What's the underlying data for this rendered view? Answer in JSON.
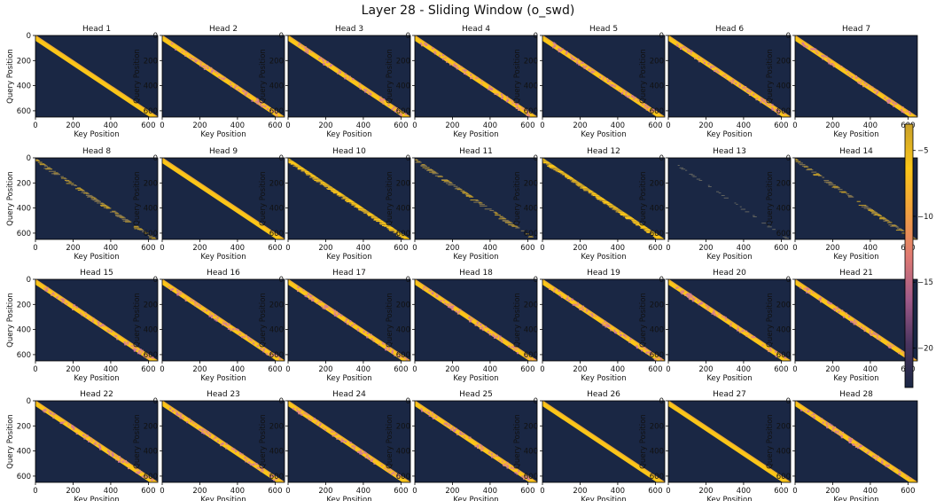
{
  "figure": {
    "title": "Layer 28 - Sliding Window (o_swd)"
  },
  "chart_data": {
    "type": "heatmap",
    "title": "Layer 28 - Sliding Window (o_swd)",
    "xlabel": "Key Position",
    "ylabel": "Query Position",
    "xlim": [
      0,
      650
    ],
    "ylim": [
      650,
      0
    ],
    "xticks": [
      "0",
      "200",
      "400",
      "600"
    ],
    "yticks": [
      "0",
      "200",
      "400",
      "600"
    ],
    "colormap": [
      "#1a2744",
      "#4b3560",
      "#a05a8a",
      "#e07a72",
      "#f0a040",
      "#fbc618",
      "#c8a02a"
    ],
    "background_color": "#1a2744",
    "colorbar": {
      "ticks": [
        "−5",
        "−10",
        "−15",
        "−20"
      ],
      "tick_values": [
        -5,
        -10,
        -15,
        -20
      ],
      "range": [
        -23,
        -3
      ]
    },
    "panels": [
      {
        "title": "Head 1",
        "style": "solid"
      },
      {
        "title": "Head 2",
        "style": "mixed"
      },
      {
        "title": "Head 3",
        "style": "mixed"
      },
      {
        "title": "Head 4",
        "style": "mixed"
      },
      {
        "title": "Head 5",
        "style": "mixed"
      },
      {
        "title": "Head 6",
        "style": "mixed"
      },
      {
        "title": "Head 7",
        "style": "mixed"
      },
      {
        "title": "Head 8",
        "style": "sparse"
      },
      {
        "title": "Head 9",
        "style": "solid"
      },
      {
        "title": "Head 10",
        "style": "striped"
      },
      {
        "title": "Head 11",
        "style": "sparse"
      },
      {
        "title": "Head 12",
        "style": "striped"
      },
      {
        "title": "Head 13",
        "style": "verysparse"
      },
      {
        "title": "Head 14",
        "style": "sparse"
      },
      {
        "title": "Head 15",
        "style": "mixed"
      },
      {
        "title": "Head 16",
        "style": "mixed"
      },
      {
        "title": "Head 17",
        "style": "mixed"
      },
      {
        "title": "Head 18",
        "style": "mixed"
      },
      {
        "title": "Head 19",
        "style": "mixed"
      },
      {
        "title": "Head 20",
        "style": "mixed"
      },
      {
        "title": "Head 21",
        "style": "mixed"
      },
      {
        "title": "Head 22",
        "style": "mixed"
      },
      {
        "title": "Head 23",
        "style": "mixed"
      },
      {
        "title": "Head 24",
        "style": "mixed"
      },
      {
        "title": "Head 25",
        "style": "mixed"
      },
      {
        "title": "Head 26",
        "style": "solid"
      },
      {
        "title": "Head 27",
        "style": "solid"
      },
      {
        "title": "Head 28",
        "style": "mixed"
      }
    ]
  }
}
